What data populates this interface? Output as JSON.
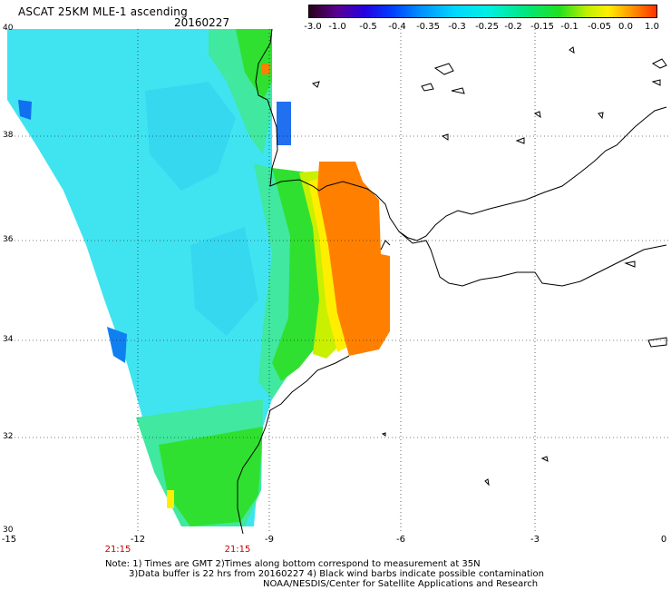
{
  "header": {
    "title": "ASCAT 25KM MLE-1 ascending",
    "date": "20160227"
  },
  "colorbar": {
    "labels": [
      "-3.0",
      "-1.0",
      "-0.5",
      "-0.4",
      "-0.35",
      "-0.3",
      "-0.25",
      "-0.2",
      "-0.15",
      "-0.1",
      "-0.05",
      "0.0",
      "1.0"
    ]
  },
  "axes": {
    "lat_labels": [
      "40",
      "38",
      "36",
      "34",
      "32",
      "30"
    ],
    "lon_labels": [
      "-15",
      "-12",
      "-9",
      "-6",
      "-3",
      "0"
    ],
    "time_labels": [
      "21:15",
      "21:15"
    ]
  },
  "notes": {
    "line1": "Note: 1) Times are GMT 2)Times along bottom correspond to measurement at 35N",
    "line2": "3)Data buffer is 22 hrs from 20160227 4) Black wind barbs indicate possible contamination",
    "line3": "NOAA/NESDIS/Center for Satellite Applications and Research"
  },
  "colors": {
    "cyan_low": "#40e0f0",
    "green": "#30e020",
    "orange_high": "#ff8000",
    "yellow": "#f0f000",
    "grid": "#000000"
  }
}
